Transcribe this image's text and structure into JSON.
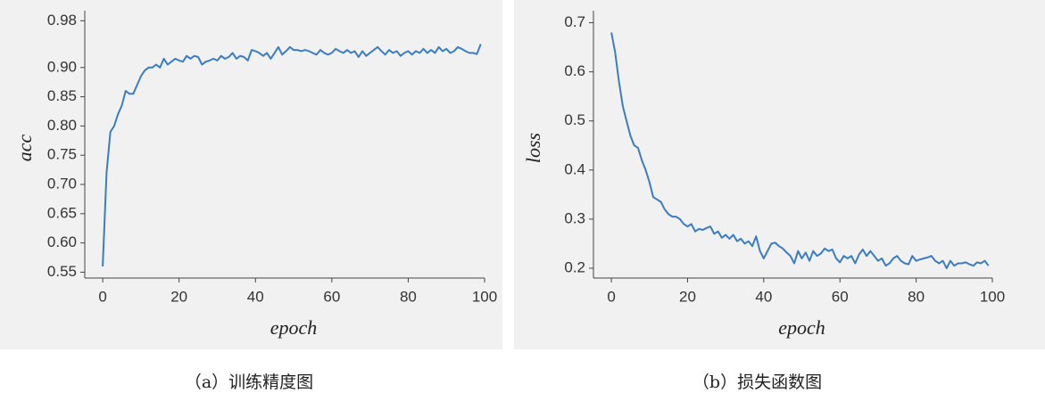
{
  "chart_data": [
    {
      "type": "line",
      "xlabel": "epoch",
      "ylabel": "acc",
      "caption": "（a）训练精度图",
      "color": "#3a7dc0",
      "xlim": [
        -4.7,
        100
      ],
      "xticks": [
        0,
        20,
        40,
        60,
        80,
        100
      ],
      "ylim": [
        0.54,
        0.985
      ],
      "yticks": [
        {
          "value": 0.55,
          "label": "0.55"
        },
        {
          "value": 0.6,
          "label": "0.60"
        },
        {
          "value": 0.65,
          "label": "0.65"
        },
        {
          "value": 0.7,
          "label": "0.70"
        },
        {
          "value": 0.75,
          "label": "0.75"
        },
        {
          "value": 0.8,
          "label": "0.80"
        },
        {
          "value": 0.85,
          "label": "0.85"
        },
        {
          "value": 0.9,
          "label": "0.90"
        },
        0.98
      ],
      "x": [
        0,
        1,
        2,
        3,
        4,
        5,
        6,
        7,
        8,
        9,
        10,
        11,
        12,
        13,
        14,
        15,
        16,
        17,
        18,
        19,
        20,
        21,
        22,
        23,
        24,
        25,
        26,
        27,
        28,
        29,
        30,
        31,
        32,
        33,
        34,
        35,
        36,
        37,
        38,
        39,
        40,
        41,
        42,
        43,
        44,
        45,
        46,
        47,
        48,
        49,
        50,
        51,
        52,
        53,
        54,
        55,
        56,
        57,
        58,
        59,
        60,
        61,
        62,
        63,
        64,
        65,
        66,
        67,
        68,
        69,
        70,
        71,
        72,
        73,
        74,
        75,
        76,
        77,
        78,
        79,
        80,
        81,
        82,
        83,
        84,
        85,
        86,
        87,
        88,
        89,
        90,
        91,
        92,
        93,
        94,
        95,
        96,
        97,
        98,
        99
      ],
      "values": [
        0.56,
        0.72,
        0.79,
        0.8,
        0.82,
        0.835,
        0.86,
        0.855,
        0.855,
        0.87,
        0.885,
        0.895,
        0.9,
        0.9,
        0.905,
        0.9,
        0.915,
        0.905,
        0.91,
        0.915,
        0.912,
        0.91,
        0.92,
        0.915,
        0.92,
        0.918,
        0.905,
        0.91,
        0.912,
        0.915,
        0.912,
        0.92,
        0.915,
        0.918,
        0.925,
        0.915,
        0.92,
        0.918,
        0.912,
        0.93,
        0.928,
        0.925,
        0.92,
        0.925,
        0.915,
        0.925,
        0.935,
        0.922,
        0.928,
        0.935,
        0.93,
        0.93,
        0.928,
        0.93,
        0.928,
        0.925,
        0.922,
        0.93,
        0.925,
        0.922,
        0.925,
        0.932,
        0.928,
        0.925,
        0.93,
        0.925,
        0.928,
        0.918,
        0.928,
        0.92,
        0.925,
        0.93,
        0.935,
        0.928,
        0.922,
        0.93,
        0.925,
        0.928,
        0.92,
        0.925,
        0.928,
        0.922,
        0.928,
        0.925,
        0.932,
        0.925,
        0.93,
        0.925,
        0.935,
        0.928,
        0.932,
        0.925,
        0.928,
        0.935,
        0.932,
        0.928,
        0.925,
        0.925,
        0.923,
        0.94
      ]
    },
    {
      "type": "line",
      "xlabel": "epoch",
      "ylabel": "loss",
      "caption": "（b）损失函数图",
      "color": "#3a7dc0",
      "xlim": [
        -4.7,
        100
      ],
      "xticks": [
        0,
        20,
        40,
        60,
        80,
        100
      ],
      "ylim": [
        0.18,
        0.71
      ],
      "yticks": [
        0.2,
        0.3,
        0.4,
        0.5,
        0.6,
        0.7
      ],
      "x": [
        0,
        1,
        2,
        3,
        4,
        5,
        6,
        7,
        8,
        9,
        10,
        11,
        12,
        13,
        14,
        15,
        16,
        17,
        18,
        19,
        20,
        21,
        22,
        23,
        24,
        25,
        26,
        27,
        28,
        29,
        30,
        31,
        32,
        33,
        34,
        35,
        36,
        37,
        38,
        39,
        40,
        41,
        42,
        43,
        44,
        45,
        46,
        47,
        48,
        49,
        50,
        51,
        52,
        53,
        54,
        55,
        56,
        57,
        58,
        59,
        60,
        61,
        62,
        63,
        64,
        65,
        66,
        67,
        68,
        69,
        70,
        71,
        72,
        73,
        74,
        75,
        76,
        77,
        78,
        79,
        80,
        81,
        82,
        83,
        84,
        85,
        86,
        87,
        88,
        89,
        90,
        91,
        92,
        93,
        94,
        95,
        96,
        97,
        98,
        99
      ],
      "values": [
        0.68,
        0.64,
        0.58,
        0.53,
        0.5,
        0.47,
        0.45,
        0.445,
        0.42,
        0.4,
        0.375,
        0.345,
        0.34,
        0.335,
        0.32,
        0.31,
        0.305,
        0.305,
        0.3,
        0.29,
        0.285,
        0.29,
        0.275,
        0.28,
        0.278,
        0.282,
        0.285,
        0.27,
        0.275,
        0.262,
        0.268,
        0.26,
        0.268,
        0.255,
        0.26,
        0.25,
        0.255,
        0.245,
        0.265,
        0.235,
        0.22,
        0.235,
        0.25,
        0.252,
        0.245,
        0.24,
        0.232,
        0.225,
        0.21,
        0.235,
        0.22,
        0.232,
        0.215,
        0.235,
        0.225,
        0.23,
        0.24,
        0.235,
        0.238,
        0.22,
        0.212,
        0.225,
        0.22,
        0.225,
        0.21,
        0.228,
        0.238,
        0.225,
        0.235,
        0.225,
        0.215,
        0.22,
        0.205,
        0.21,
        0.22,
        0.225,
        0.215,
        0.21,
        0.208,
        0.225,
        0.215,
        0.218,
        0.22,
        0.222,
        0.225,
        0.215,
        0.21,
        0.215,
        0.2,
        0.215,
        0.205,
        0.21,
        0.21,
        0.212,
        0.208,
        0.205,
        0.212,
        0.21,
        0.215,
        0.205
      ]
    }
  ]
}
